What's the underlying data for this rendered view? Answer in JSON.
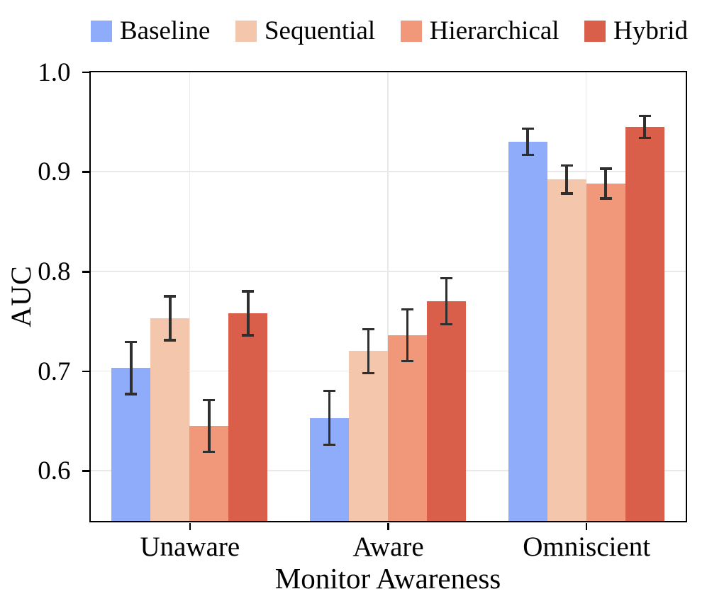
{
  "chart_data": {
    "type": "bar",
    "title": "",
    "xlabel": "Monitor Awareness",
    "ylabel": "AUC",
    "categories": [
      "Unaware",
      "Aware",
      "Omniscient"
    ],
    "series": [
      {
        "name": "Baseline",
        "color": "#8EACF9",
        "values": [
          0.703,
          0.653,
          0.93
        ],
        "errors": [
          0.026,
          0.027,
          0.013
        ]
      },
      {
        "name": "Sequential",
        "color": "#F4C6AC",
        "values": [
          0.753,
          0.72,
          0.892
        ],
        "errors": [
          0.022,
          0.022,
          0.014
        ]
      },
      {
        "name": "Hierarchical",
        "color": "#F2987A",
        "values": [
          0.645,
          0.736,
          0.888
        ],
        "errors": [
          0.026,
          0.026,
          0.015
        ]
      },
      {
        "name": "Hybrid",
        "color": "#D95F4B",
        "values": [
          0.758,
          0.77,
          0.945
        ],
        "errors": [
          0.022,
          0.023,
          0.011
        ]
      }
    ],
    "ylim": [
      0.55,
      1.0
    ],
    "yticks": [
      {
        "value": 0.6,
        "label": "0.6"
      },
      {
        "value": 0.7,
        "label": "0.7"
      },
      {
        "value": 0.8,
        "label": "0.8"
      },
      {
        "value": 0.9,
        "label": "0.9"
      },
      {
        "value": 1.0,
        "label": "1.0"
      }
    ],
    "grid": true,
    "legend_position": "top",
    "colors": {
      "error_bar": "#2F2F2F",
      "grid": "#E9E9E9",
      "axis": "#000000",
      "background": "#FFFFFF"
    }
  }
}
